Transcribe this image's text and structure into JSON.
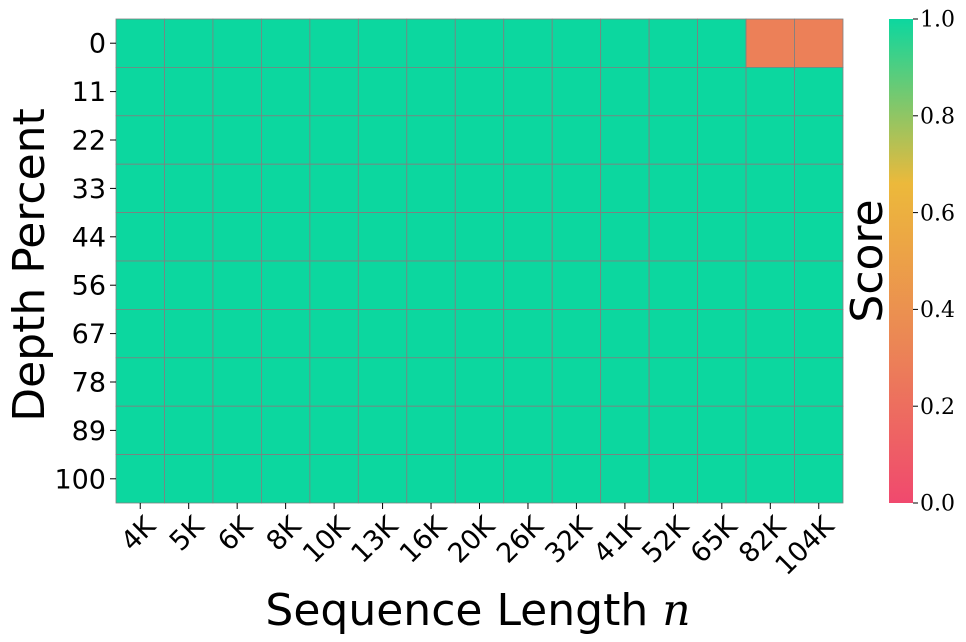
{
  "chart_data": {
    "type": "heatmap",
    "xlabel": "Sequence Length",
    "xlabel_var": "n",
    "ylabel": "Depth Percent",
    "colorbar_label": "Score",
    "x_categories": [
      "4K",
      "5K",
      "6K",
      "8K",
      "10K",
      "13K",
      "16K",
      "20K",
      "26K",
      "32K",
      "41K",
      "52K",
      "65K",
      "82K",
      "104K"
    ],
    "y_categories": [
      "0",
      "11",
      "22",
      "33",
      "44",
      "56",
      "67",
      "78",
      "89",
      "100"
    ],
    "values": [
      [
        1,
        1,
        1,
        1,
        1,
        1,
        1,
        1,
        1,
        1,
        1,
        1,
        1,
        0.3,
        0.3
      ],
      [
        1,
        1,
        1,
        1,
        1,
        1,
        1,
        1,
        1,
        1,
        1,
        1,
        1,
        1,
        1
      ],
      [
        1,
        1,
        1,
        1,
        1,
        1,
        1,
        1,
        1,
        1,
        1,
        1,
        1,
        1,
        1
      ],
      [
        1,
        1,
        1,
        1,
        1,
        1,
        1,
        1,
        1,
        1,
        1,
        1,
        1,
        1,
        1
      ],
      [
        1,
        1,
        1,
        1,
        1,
        1,
        1,
        1,
        1,
        1,
        1,
        1,
        1,
        1,
        1
      ],
      [
        1,
        1,
        1,
        1,
        1,
        1,
        1,
        1,
        1,
        1,
        1,
        1,
        1,
        1,
        1
      ],
      [
        1,
        1,
        1,
        1,
        1,
        1,
        1,
        1,
        1,
        1,
        1,
        1,
        1,
        1,
        1
      ],
      [
        1,
        1,
        1,
        1,
        1,
        1,
        1,
        1,
        1,
        1,
        1,
        1,
        1,
        1,
        1
      ],
      [
        1,
        1,
        1,
        1,
        1,
        1,
        1,
        1,
        1,
        1,
        1,
        1,
        1,
        1,
        1
      ],
      [
        1,
        1,
        1,
        1,
        1,
        1,
        1,
        1,
        1,
        1,
        1,
        1,
        1,
        1,
        1
      ]
    ],
    "vmin": 0,
    "vmax": 1,
    "colorbar_ticks": [
      "0.0",
      "0.2",
      "0.4",
      "0.6",
      "0.8",
      "1.0"
    ],
    "colormap": [
      "#f0496e",
      "#eb8655",
      "#ecb93b",
      "#0cd79f"
    ],
    "grid_color": "#808080"
  }
}
